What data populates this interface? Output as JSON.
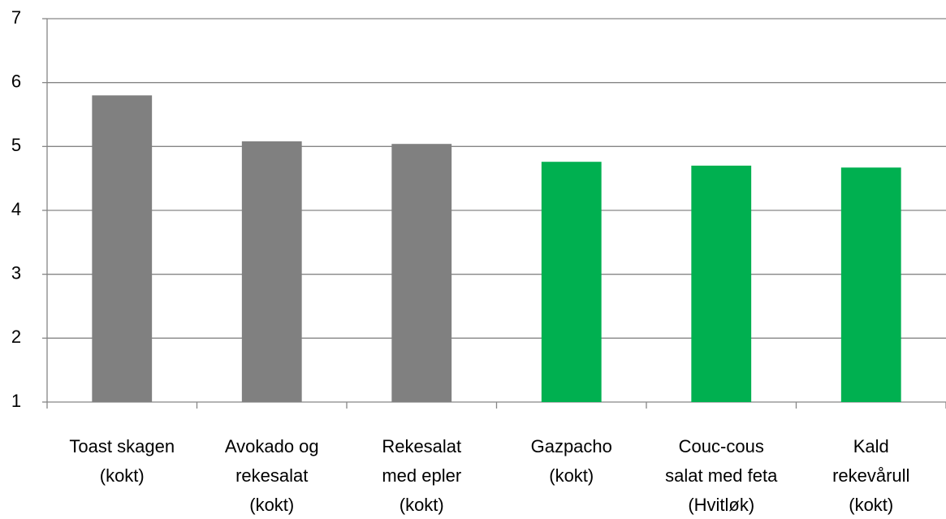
{
  "chart_data": {
    "type": "bar",
    "categories": [
      "Toast skagen\n(kokt)",
      "Avokado og\nrekesalat\n(kokt)",
      "Rekesalat\nmed epler\n(kokt)",
      "Gazpacho\n(kokt)",
      "Couc-cous\nsalat med feta\n(Hvitløk)",
      "Kald\nrekevårull\n(kokt)"
    ],
    "values": [
      5.8,
      5.08,
      5.04,
      4.76,
      4.7,
      4.67
    ],
    "colors": [
      "#808080",
      "#808080",
      "#808080",
      "#00b050",
      "#00b050",
      "#00b050"
    ],
    "ylim": [
      1,
      7
    ],
    "yticks": [
      1,
      2,
      3,
      4,
      5,
      6,
      7
    ],
    "grid": true
  }
}
